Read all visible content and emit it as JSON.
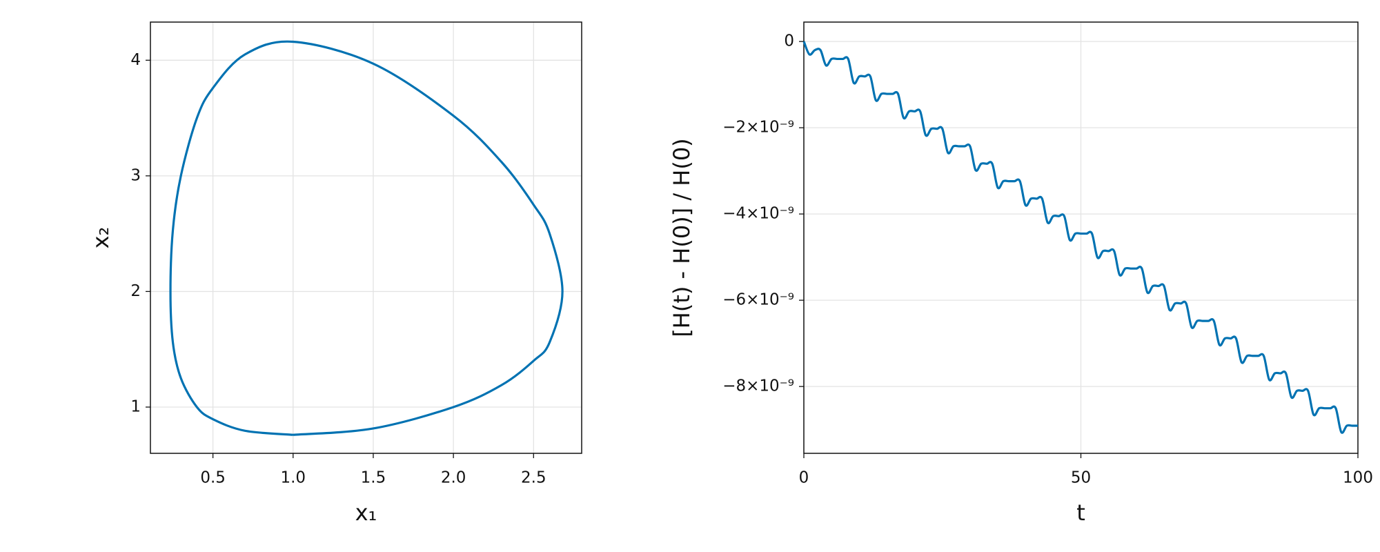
{
  "chart_data": [
    {
      "type": "line",
      "xlabel": "x₁",
      "ylabel": "x₂",
      "color": "#0072b2",
      "grid": true,
      "x": [
        1.0,
        1.5,
        2.0,
        2.3,
        2.5,
        2.6,
        2.68,
        2.6,
        2.5,
        2.3,
        2.0,
        1.5,
        1.0,
        0.7,
        0.5,
        0.4,
        0.3,
        0.25,
        0.235,
        0.25,
        0.3,
        0.4,
        0.5,
        0.7,
        1.0
      ],
      "values": [
        0.76,
        0.815,
        1.0,
        1.19,
        1.4,
        1.56,
        2,
        2.5,
        2.75,
        3.12,
        3.52,
        3.97,
        4.16,
        4.05,
        3.76,
        3.5,
        3.0,
        2.53,
        2,
        1.56,
        1.25,
        1.0,
        0.895,
        0.795,
        0.76
      ],
      "xlim": [
        0.11,
        2.8
      ],
      "ylim": [
        0.6,
        4.33
      ],
      "xticks": [
        0.5,
        {
          "value": 1,
          "label": "1.0"
        },
        1.5,
        {
          "value": 2,
          "label": "2.0"
        },
        2.5
      ],
      "yticks": [
        1,
        2,
        3,
        4
      ]
    },
    {
      "type": "line",
      "xlabel": "t",
      "ylabel": "[H(t) - H(0)] / H(0)",
      "color": "#0072b2",
      "grid": true,
      "x": [
        0,
        1,
        2,
        3,
        4,
        5,
        6,
        7,
        8,
        9,
        10,
        11,
        12,
        13,
        14,
        15,
        16,
        17,
        18,
        19,
        20,
        21,
        22,
        23,
        24,
        25,
        26,
        27,
        28,
        29,
        30,
        31,
        32,
        33,
        34,
        35,
        36,
        37,
        38,
        39,
        40,
        41,
        42,
        43,
        44,
        45,
        46,
        47,
        48,
        49,
        50,
        51,
        52,
        53,
        54,
        55,
        56,
        57,
        58,
        59,
        60,
        61,
        62,
        63,
        64,
        65,
        66,
        67,
        68,
        69,
        70,
        71,
        72,
        73,
        74,
        75,
        76,
        77,
        78,
        79,
        80,
        81,
        82,
        83,
        84,
        85,
        86,
        87,
        88,
        89,
        90,
        91,
        92,
        93,
        94,
        95,
        96,
        97,
        98,
        99,
        100
      ],
      "values": [
        0,
        -3e-10,
        -2e-10,
        -2e-10,
        -5.55e-10,
        -4.05e-10,
        -4.05e-10,
        -4.05e-10,
        -4.05e-10,
        -9.6e-10,
        -8.1e-10,
        -8.1e-10,
        -8.1e-10,
        -1.365e-09,
        -1.215e-09,
        -1.215e-09,
        -1.215e-09,
        -1.215e-09,
        -1.77e-09,
        -1.62e-09,
        -1.62e-09,
        -1.62e-09,
        -2.175e-09,
        -2.025e-09,
        -2.025e-09,
        -2.025e-09,
        -2.58e-09,
        -2.43e-09,
        -2.43e-09,
        -2.43e-09,
        -2.43e-09,
        -2.985e-09,
        -2.835e-09,
        -2.835e-09,
        -2.835e-09,
        -3.39e-09,
        -3.24e-09,
        -3.24e-09,
        -3.24e-09,
        -3.24e-09,
        -3.795e-09,
        -3.645e-09,
        -3.645e-09,
        -3.645e-09,
        -4.2e-09,
        -4.05e-09,
        -4.05e-09,
        -4.05e-09,
        -4.605e-09,
        -4.455e-09,
        -4.455e-09,
        -4.455e-09,
        -4.455e-09,
        -5.01e-09,
        -4.86e-09,
        -4.86e-09,
        -4.86e-09,
        -5.415e-09,
        -5.265e-09,
        -5.265e-09,
        -5.265e-09,
        -5.265e-09,
        -5.82e-09,
        -5.67e-09,
        -5.67e-09,
        -5.67e-09,
        -6.225e-09,
        -6.075e-09,
        -6.075e-09,
        -6.075e-09,
        -6.63e-09,
        -6.48e-09,
        -6.48e-09,
        -6.48e-09,
        -6.48e-09,
        -7.035e-09,
        -6.885e-09,
        -6.885e-09,
        -6.885e-09,
        -7.44e-09,
        -7.29e-09,
        -7.29e-09,
        -7.29e-09,
        -7.29e-09,
        -7.845e-09,
        -7.695e-09,
        -7.695e-09,
        -7.695e-09,
        -8.25e-09,
        -8.1e-09,
        -8.1e-09,
        -8.1e-09,
        -8.655e-09,
        -8.505e-09,
        -8.505e-09,
        -8.505e-09,
        -8.505e-09,
        -9.06e-09,
        -8.91e-09,
        -8.91e-09,
        -8.91e-09
      ],
      "xlim": [
        0,
        100
      ],
      "ylim": [
        -9.55e-09,
        4.5e-10
      ],
      "xticks": [
        0,
        50,
        100
      ],
      "yticks": [
        0,
        {
          "value": -2e-09,
          "label": "−2×10⁻⁹"
        },
        {
          "value": -4e-09,
          "label": "−4×10⁻⁹"
        },
        {
          "value": -6e-09,
          "label": "−6×10⁻⁹"
        },
        {
          "value": -8e-09,
          "label": "−8×10⁻⁹"
        }
      ]
    }
  ]
}
